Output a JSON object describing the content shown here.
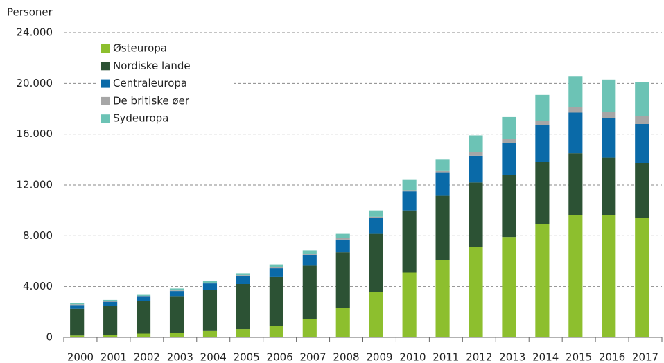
{
  "chart_data": {
    "type": "stacked_bar",
    "y_axis_label": "Personer",
    "categories": [
      "2000",
      "2001",
      "2002",
      "2003",
      "2004",
      "2005",
      "2006",
      "2007",
      "2008",
      "2009",
      "2010",
      "2011",
      "2012",
      "2013",
      "2014",
      "2015",
      "2016",
      "2017"
    ],
    "series": [
      {
        "name": "Østeuropa",
        "color": "#8dbf2e",
        "values": [
          150,
          200,
          300,
          350,
          500,
          650,
          900,
          1450,
          2300,
          3600,
          5100,
          6100,
          7100,
          7900,
          8900,
          9600,
          9650,
          9400
        ]
      },
      {
        "name": "Nordiske lande",
        "color": "#2c5234",
        "values": [
          2100,
          2300,
          2550,
          2850,
          3250,
          3550,
          3850,
          4200,
          4400,
          4550,
          4900,
          5050,
          5100,
          4900,
          4900,
          4900,
          4500,
          4300
        ]
      },
      {
        "name": "Centraleuropa",
        "color": "#0a6aa8",
        "values": [
          300,
          300,
          350,
          450,
          500,
          600,
          700,
          850,
          1000,
          1250,
          1500,
          1800,
          2100,
          2500,
          2900,
          3200,
          3100,
          3100
        ]
      },
      {
        "name": "De britiske øer",
        "color": "#a6a6a6",
        "values": [
          50,
          50,
          50,
          50,
          50,
          100,
          100,
          100,
          100,
          100,
          100,
          150,
          300,
          350,
          350,
          450,
          500,
          600
        ]
      },
      {
        "name": "Sydeuropa",
        "color": "#6cc3b5",
        "values": [
          100,
          100,
          100,
          150,
          150,
          150,
          200,
          250,
          350,
          500,
          800,
          900,
          1300,
          1700,
          2050,
          2400,
          2550,
          2700
        ]
      }
    ],
    "ylim": [
      0,
      24000
    ],
    "yticks": [
      0,
      {
        "value": 4000,
        "label": "4.000"
      },
      {
        "value": 8000,
        "label": "8.000"
      },
      {
        "value": 12000,
        "label": "12.000"
      },
      {
        "value": 16000,
        "label": "16.000"
      },
      {
        "value": 20000,
        "label": "20.000"
      },
      {
        "value": 24000,
        "label": "24.000"
      }
    ],
    "grid": true,
    "legend": "top-left"
  }
}
